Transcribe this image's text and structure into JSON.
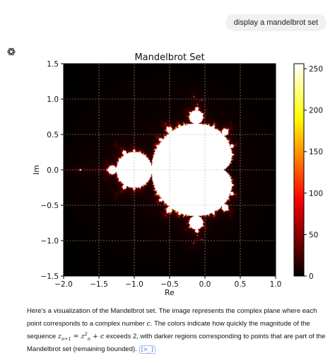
{
  "user_message": "display a mandelbrot set",
  "assistant": {
    "icon": "openai-logo-icon",
    "text_before_math": "Here's a visualization of the Mandelbrot set. The image represents the complex plane where each point corresponds to a complex number ",
    "math_c": "c",
    "text_mid": ". The colors indicate how quickly the magnitude of the sequence ",
    "math_seq_lhs": "z",
    "math_seq_lhs_sub": "n+1",
    "math_seq_eq": " = ",
    "math_seq_rhs": "z",
    "math_seq_rhs_sub": "n",
    "math_seq_rhs_sup": "2",
    "math_seq_plus": " + c",
    "text_after": " exceeds 2, with darker regions corresponding to points that are part of the Mandelbrot set (remaining bounded).",
    "source_link_label": "[>_]"
  },
  "chart_data": {
    "type": "heatmap",
    "title": "Mandelbrot Set",
    "xlabel": "Re",
    "ylabel": "Im",
    "xlim": [
      -2.0,
      1.0
    ],
    "ylim": [
      -1.5,
      1.5
    ],
    "xticks": [
      -2.0,
      -1.5,
      -1.0,
      -0.5,
      0.0,
      0.5,
      1.0
    ],
    "xtick_labels": [
      "−2.0",
      "−1.5",
      "−1.0",
      "−0.5",
      "0.0",
      "0.5",
      "1.0"
    ],
    "yticks": [
      -1.5,
      -1.0,
      -0.5,
      0.0,
      0.5,
      1.0,
      1.5
    ],
    "ytick_labels": [
      "−1.5",
      "−1.0",
      "−0.5",
      "0.0",
      "0.5",
      "1.0",
      "1.5"
    ],
    "grid": true,
    "colormap": "hot",
    "max_iterations": 256,
    "colorbar_range": [
      0,
      256
    ],
    "colorbar_ticks": [
      0,
      50,
      100,
      150,
      200,
      250
    ],
    "colorbar_tick_labels": [
      "0",
      "50",
      "100",
      "150",
      "200",
      "250"
    ]
  }
}
